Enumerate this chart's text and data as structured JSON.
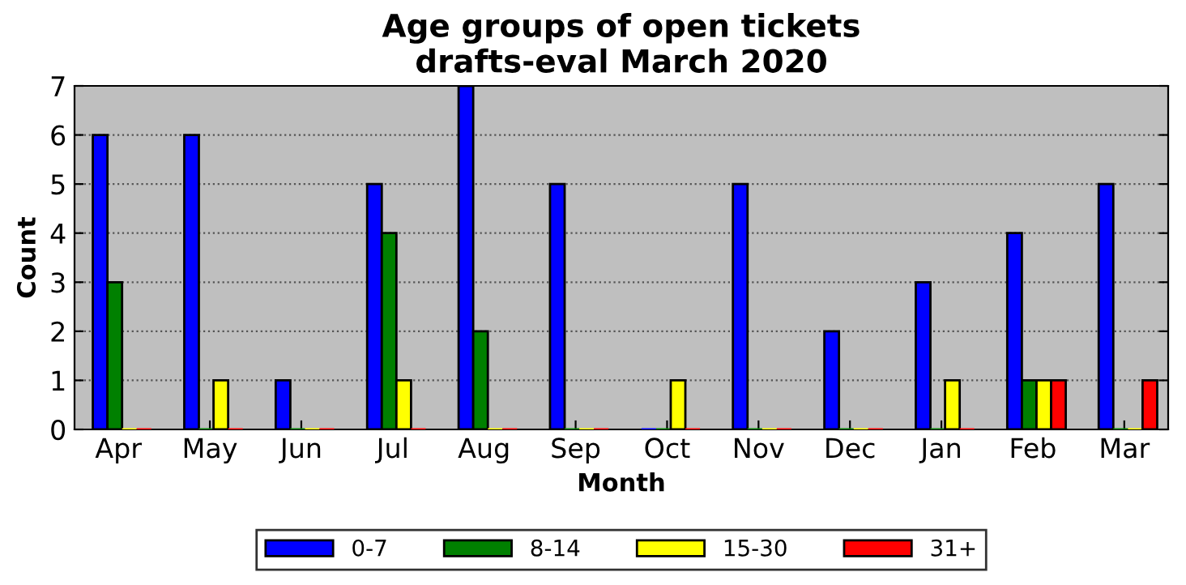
{
  "chart_data": {
    "type": "bar",
    "title": "Age groups of open tickets\ndrafts-eval March 2020",
    "xlabel": "Month",
    "ylabel": "Count",
    "categories": [
      "Apr",
      "May",
      "Jun",
      "Jul",
      "Aug",
      "Sep",
      "Oct",
      "Nov",
      "Dec",
      "Jan",
      "Feb",
      "Mar"
    ],
    "series": [
      {
        "name": "0-7",
        "color": "#0000ff",
        "values": [
          6,
          6,
          1,
          5,
          7,
          5,
          0,
          5,
          2,
          3,
          4,
          5
        ]
      },
      {
        "name": "8-14",
        "color": "#008000",
        "values": [
          3,
          0,
          0,
          4,
          2,
          0,
          0,
          0,
          0,
          0,
          1,
          0
        ]
      },
      {
        "name": "15-30",
        "color": "#ffff00",
        "values": [
          0,
          1,
          0,
          1,
          0,
          0,
          1,
          0,
          0,
          1,
          1,
          0
        ]
      },
      {
        "name": "31+",
        "color": "#ff0000",
        "values": [
          0,
          0,
          0,
          0,
          0,
          0,
          0,
          0,
          0,
          0,
          1,
          1
        ]
      }
    ],
    "ylim": [
      0,
      7
    ],
    "yticks": [
      0,
      1,
      2,
      3,
      4,
      5,
      6,
      7
    ],
    "grid": "y",
    "legend": "bottom"
  }
}
